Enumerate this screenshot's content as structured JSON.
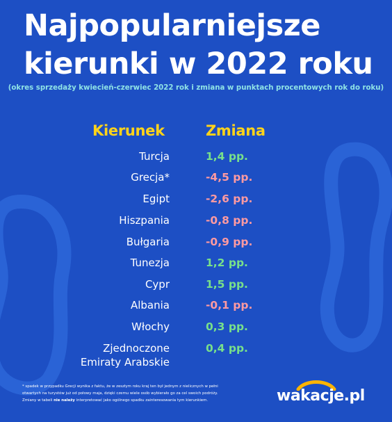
{
  "colors": {
    "background": "#1d4fc4",
    "header_yellow": "#ffd31a",
    "positive": "#78e08a",
    "negative": "#ff9aa1",
    "subtitle": "#8fe3e6",
    "logo_arc": "#ffb400"
  },
  "title": {
    "line1": "Najpopularniejsze",
    "line2": "kierunki w 2022 roku"
  },
  "subtitle": "(okres sprzedaży kwiecień-czerwiec 2022 rok i zmiana w punktach procentowych rok do roku)",
  "table": {
    "col_destination": "Kierunek",
    "col_change": "Zmiana",
    "rows": [
      {
        "destination": "Turcja",
        "change": "1,4 pp.",
        "sign": "positive"
      },
      {
        "destination": "Grecja*",
        "change": "-4,5 pp.",
        "sign": "negative"
      },
      {
        "destination": "Egipt",
        "change": "-2,6 pp.",
        "sign": "negative"
      },
      {
        "destination": "Hiszpania",
        "change": "-0,8 pp.",
        "sign": "negative"
      },
      {
        "destination": "Bułgaria",
        "change": "-0,9 pp.",
        "sign": "negative"
      },
      {
        "destination": "Tunezja",
        "change": "1,2 pp.",
        "sign": "positive"
      },
      {
        "destination": "Cypr",
        "change": "1,5 pp.",
        "sign": "positive"
      },
      {
        "destination": "Albania",
        "change": "-0,1 pp.",
        "sign": "negative"
      },
      {
        "destination": "Włochy",
        "change": "0,3 pp.",
        "sign": "positive"
      },
      {
        "destination_line1": "Zjednoczone",
        "destination_line2": "Emiraty Arabskie",
        "change": "0,4 pp.",
        "sign": "positive"
      }
    ]
  },
  "footnote": {
    "line1": "* spadek w przypadku Grecji wynika z faktu, że w zeszłym roku kraj ten był jednym z nielicznych  w pełni",
    "line2": "otwartych na turystów już od połowy maja, dzięki czemu wiele osób wybierało go za cel swoich podróży.",
    "line3_start": "Zmiany w tabeli ",
    "line3_bold": "nie należy",
    "line3_end": " interpretować jako ogólnego spadku zainteresowania tym kierunkiem."
  },
  "logo": {
    "text": "wakacje.pl",
    "icon": "sun-arc-icon"
  }
}
